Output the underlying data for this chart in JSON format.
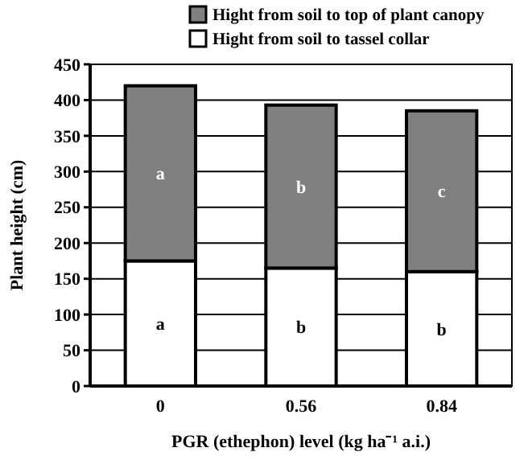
{
  "chart_data": {
    "type": "bar",
    "stacked": true,
    "xlabel": "PGR (ethephon) level (kg ha⁻¹ a.i.)",
    "ylabel": "Plant height (cm)",
    "categories": [
      "0",
      "0.56",
      "0.84"
    ],
    "series": [
      {
        "name": "Hight from soil to tassel collar",
        "color": "#ffffff",
        "values": [
          175,
          165,
          160
        ]
      },
      {
        "name": "Hight from soil to top of plant canopy",
        "color": "#808080",
        "values": [
          245,
          228,
          225
        ]
      }
    ],
    "ylim": [
      0,
      450
    ],
    "yticks": [
      0,
      50,
      100,
      150,
      200,
      250,
      300,
      350,
      400,
      450
    ],
    "grid": "y",
    "legend": "top right",
    "annotations": [
      "a",
      "b",
      "c",
      "a",
      "b",
      "b"
    ]
  }
}
